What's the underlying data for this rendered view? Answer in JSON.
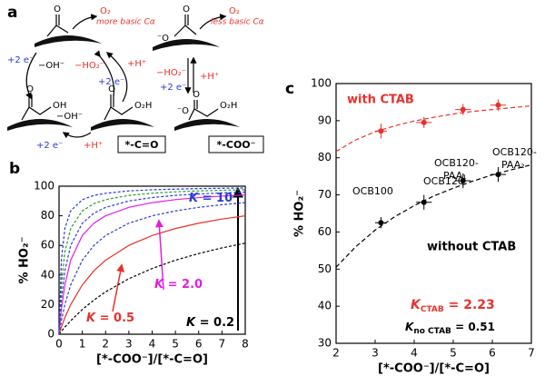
{
  "panel_a": {
    "label": "a",
    "texts": [
      "O",
      "O₂",
      "more basic Cα",
      "O",
      "⁻O",
      "O₂",
      "less basic Cα",
      "+2 e⁻",
      "−OH⁻",
      "−HO₂⁻",
      "+H⁺",
      "+2 e⁻",
      "−HO₂⁻",
      "+H⁺",
      "+2 e⁻",
      "O",
      "OH",
      "O",
      "O₂H",
      "−OH⁻",
      "+2 e⁻",
      "+H⁺",
      "*-C=O",
      "O",
      "⁻O",
      "O₂H",
      "*-COO⁻"
    ]
  },
  "chart_data": [
    {
      "type": "line",
      "label": "b",
      "xlim": [
        0,
        8
      ],
      "ylim": [
        0,
        100
      ],
      "xticks": [
        0,
        1,
        2,
        3,
        4,
        5,
        6,
        7,
        8
      ],
      "yticks": [
        0,
        20,
        40,
        60,
        80,
        100
      ],
      "x_label": "[*-COO⁻]/[*-C=O]",
      "y_label": "% HO₂⁻",
      "x": [
        0,
        0.1,
        0.25,
        0.5,
        1,
        1.5,
        2,
        3,
        4,
        5,
        6,
        7,
        8
      ],
      "series": [
        {
          "color": "#000000",
          "dash": true,
          "values": [
            0,
            2.0,
            4.8,
            9.1,
            16.7,
            23.1,
            28.6,
            37.5,
            44.4,
            50,
            54.5,
            58.3,
            61.5
          ]
        },
        {
          "color": "#e8312b",
          "dash": false,
          "values": [
            0,
            4.8,
            11.1,
            20,
            33.3,
            42.9,
            50,
            60,
            66.7,
            71.4,
            75,
            77.8,
            80
          ]
        },
        {
          "color": "#2b3bd6",
          "dash": true,
          "values": [
            0,
            9.1,
            20,
            33.3,
            50,
            60,
            66.7,
            75,
            80,
            83.3,
            85.7,
            87.5,
            88.9
          ]
        },
        {
          "color": "#e020e0",
          "dash": false,
          "values": [
            0,
            16.7,
            33.3,
            50,
            66.7,
            75,
            80,
            85.7,
            88.9,
            90.9,
            92.3,
            93.3,
            94.1
          ]
        },
        {
          "color": "#2b3bd6",
          "dash": true,
          "values": [
            0,
            23.1,
            42.9,
            60,
            75,
            81.8,
            85.7,
            90,
            92.3,
            93.8,
            94.7,
            95.5,
            96
          ]
        },
        {
          "color": "#2a9a2a",
          "dash": true,
          "values": [
            0,
            33.3,
            55.6,
            71.4,
            83.3,
            88.2,
            90.9,
            93.8,
            95.2,
            96.2,
            96.8,
            97.2,
            97.6
          ]
        },
        {
          "color": "#2b3bd6",
          "dash": true,
          "values": [
            0,
            50,
            71.4,
            83.3,
            90.9,
            93.8,
            95.2,
            96.8,
            97.6,
            98,
            98.4,
            98.6,
            98.8
          ]
        }
      ],
      "annotations": [
        {
          "symbol": "K",
          "text": " = 10",
          "color": "#2b3bd6"
        },
        {
          "symbol": "K",
          "text": " = 2.0",
          "color": "#e020e0"
        },
        {
          "symbol": "K",
          "text": " = 0.5",
          "color": "#e8312b"
        },
        {
          "symbol": "K",
          "text": " = 0.2",
          "color": "#000000"
        }
      ]
    },
    {
      "type": "scatter",
      "label": "c",
      "xlim": [
        2,
        7
      ],
      "ylim": [
        30,
        100
      ],
      "xticks": [
        2,
        3,
        4,
        5,
        6,
        7
      ],
      "yticks": [
        30,
        40,
        50,
        60,
        70,
        80,
        90,
        100
      ],
      "x_label": "[*-COO⁻]/[*-C=O]",
      "y_label": "% HO₂⁻",
      "series": [
        {
          "name": "with CTAB",
          "color": "#e8312b",
          "x": [
            3.15,
            4.25,
            5.25,
            6.15
          ],
          "values": [
            87.2,
            89.5,
            93,
            94.2
          ],
          "xerr": [
            0.15,
            0.2,
            0.2,
            0.2
          ],
          "yerr": [
            2,
            1.5,
            1.5,
            1.5
          ]
        },
        {
          "name": "without CTAB",
          "color": "#000000",
          "x": [
            3.15,
            4.25,
            5.25,
            6.15
          ],
          "values": [
            62.5,
            68,
            73.8,
            75.5
          ],
          "xerr": [
            0.15,
            0.2,
            0.2,
            0.2
          ],
          "yerr": [
            1.5,
            2,
            2,
            2
          ]
        }
      ],
      "fits": [
        {
          "color": "#e8312b",
          "x": [
            2,
            2.5,
            3,
            3.5,
            4,
            4.5,
            5,
            5.5,
            6,
            6.5,
            7
          ],
          "values": [
            81.7,
            84.8,
            87.0,
            88.6,
            89.9,
            90.9,
            91.8,
            92.5,
            93.0,
            93.5,
            94.0
          ]
        },
        {
          "color": "#000000",
          "x": [
            2,
            2.5,
            3,
            3.5,
            4,
            4.5,
            5,
            5.5,
            6,
            6.5,
            7
          ],
          "values": [
            50.5,
            56.0,
            60.5,
            64.1,
            67.1,
            69.7,
            71.8,
            73.7,
            75.4,
            76.8,
            78.1
          ]
        }
      ],
      "fit_labels": [
        {
          "symbol": "K",
          "sub": "CTAB",
          "text": " = 2.23",
          "color": "#e8312b"
        },
        {
          "symbol": "K",
          "sub": "no CTAB",
          "text": " = 0.51",
          "color": "#000000"
        }
      ],
      "sample_labels": [
        [
          "OCB100"
        ],
        [
          "OCB120"
        ],
        [
          "OCB120-",
          "PAA₁"
        ],
        [
          "OCB120-",
          "PAA₂"
        ]
      ]
    }
  ]
}
